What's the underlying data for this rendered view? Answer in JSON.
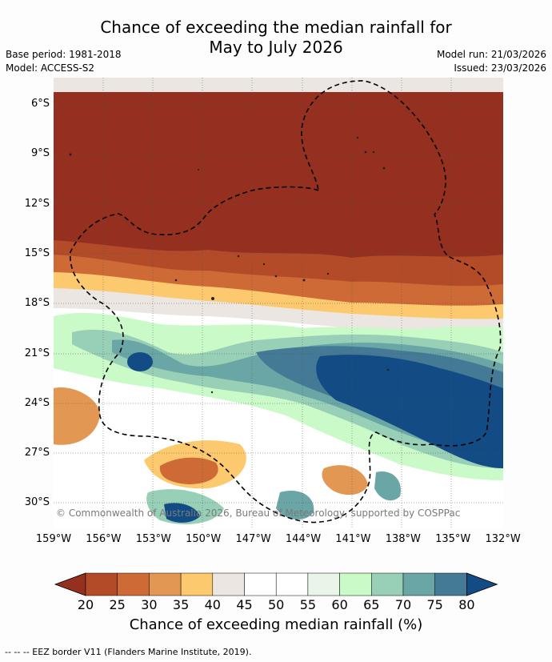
{
  "header": {
    "title_line1": "Chance of exceeding the median rainfall for",
    "title_line2": "May to July 2026",
    "base_period": "Base period: 1981-2018",
    "model": "Model: ACCESS-S2",
    "model_run": "Model run: 21/03/2026",
    "issued": "Issued: 23/03/2026"
  },
  "map": {
    "lat_ticks": [
      "6°S",
      "9°S",
      "12°S",
      "15°S",
      "18°S",
      "21°S",
      "24°S",
      "27°S",
      "30°S"
    ],
    "lon_ticks": [
      "159°W",
      "156°W",
      "153°W",
      "150°W",
      "147°W",
      "144°W",
      "141°W",
      "138°W",
      "135°W",
      "132°W"
    ],
    "copyright": "© Commonwealth of Australia 2026, Bureau of Meteorology, supported by COSPPac",
    "legend_line": "-- -- -- EEZ border V11 (Flanders Marine Institute, 2019)."
  },
  "colorbar": {
    "title": "Chance of exceeding median rainfall (%)",
    "ticks": [
      "20",
      "25",
      "30",
      "35",
      "40",
      "45",
      "50",
      "55",
      "60",
      "65",
      "70",
      "75",
      "80"
    ],
    "colors": [
      "#953020",
      "#b34a28",
      "#cd6a36",
      "#e29852",
      "#fcc96e",
      "#ece6e2",
      "#ffffff",
      "#ffffff",
      "#e8f5e8",
      "#c9fac8",
      "#98cfb7",
      "#6aa6a5",
      "#447a96",
      "#134c85"
    ]
  }
}
